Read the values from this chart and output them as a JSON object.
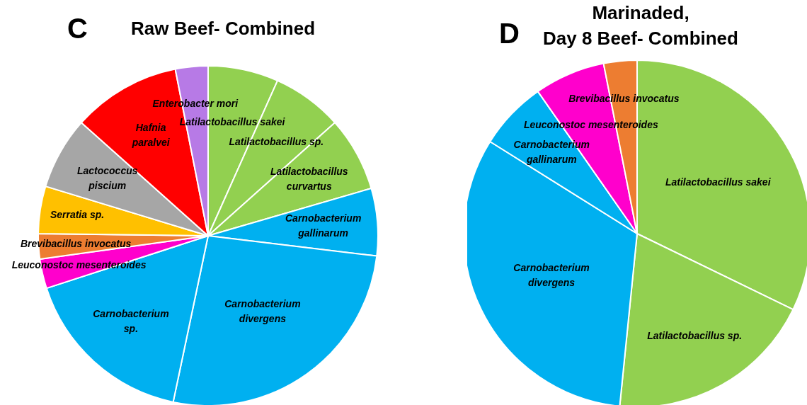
{
  "chart_data": [
    {
      "type": "pie",
      "title": "Raw Beef- Combined",
      "annotations": [
        "C"
      ],
      "categories": [
        "Latilactobacillus sakei",
        "Latilactobacillus sp.",
        "Latilactobacillus\ncurvartus",
        "Carnobacterium\ngallinarum",
        "Carnobacterium\ndivergens",
        "Carnobacterium\nsp.",
        "Leuconostoc mesenteroides",
        "Brevibacillus invocatus",
        "Serratia sp.",
        "Lactococcus\npiscium",
        "Hafnia\nparalvei",
        "Enterobacter mori"
      ],
      "values": [
        6.7,
        6.7,
        7.1,
        6.4,
        26.4,
        16.7,
        2.8,
        2.4,
        4.5,
        6.9,
        10.3,
        3.1
      ],
      "colors": [
        "#92d050",
        "#92d050",
        "#92d050",
        "#00b0f0",
        "#00b0f0",
        "#00b0f0",
        "#ff00cc",
        "#ed7d31",
        "#ffc000",
        "#a6a6a6",
        "#ff0000",
        "#b77ae6"
      ]
    },
    {
      "type": "pie",
      "title": "Marinaded,\nDay 8 Beef- Combined",
      "annotations": [
        "D"
      ],
      "categories": [
        "Latilactobacillus sakei",
        "Latilactobacillus sp.",
        "Carnobacterium\ndivergens",
        "Carnobacterium\ngallinarum",
        "Leuconostoc mesenteroides",
        "Brevibacillus invocatus"
      ],
      "values": [
        32.2,
        19.4,
        32.3,
        6.4,
        6.6,
        3.1
      ],
      "colors": [
        "#92d050",
        "#92d050",
        "#00b0f0",
        "#00b0f0",
        "#ff00cc",
        "#ed7d31"
      ]
    }
  ]
}
